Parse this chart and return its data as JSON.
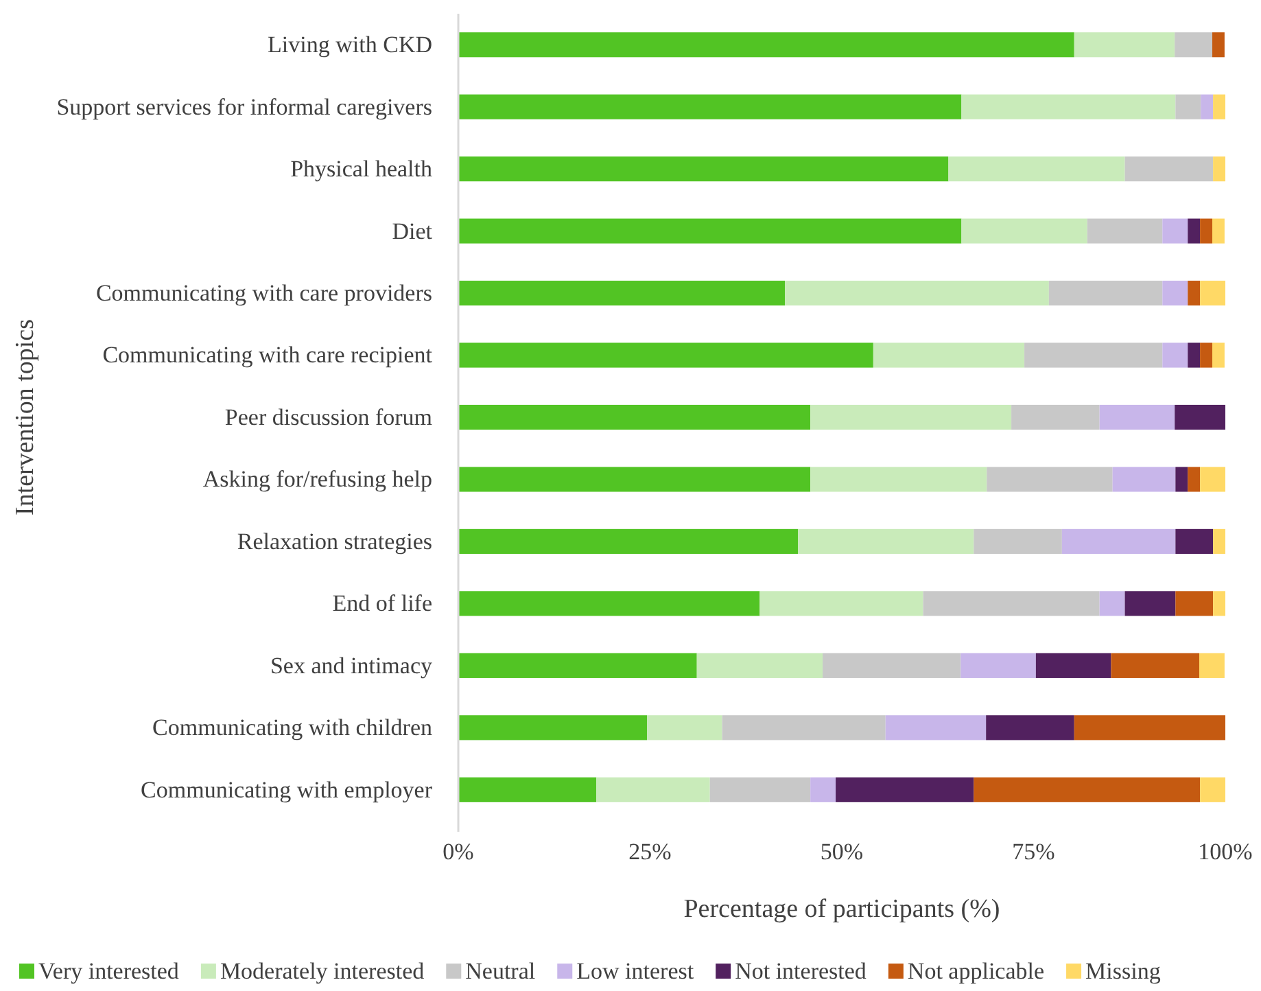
{
  "chart_data": {
    "type": "bar",
    "orientation": "horizontal",
    "stacked": true,
    "xlabel": "Percentage of participants (%)",
    "ylabel": "Intervention topics",
    "categories": [
      "Living with CKD",
      "Support services for informal caregivers",
      "Physical health",
      "Diet",
      "Communicating with care providers",
      "Communicating with care recipient",
      "Peer discussion forum",
      "Asking for/refusing help",
      "Relaxation strategies",
      "End of life",
      "Sex and intimacy",
      "Communicating with children",
      "Communicating with employer"
    ],
    "series": [
      {
        "name": "Very interested",
        "color": "#52c424",
        "values": [
          80.3,
          65.6,
          63.9,
          65.6,
          42.6,
          54.1,
          45.9,
          45.9,
          44.3,
          39.3,
          31.1,
          24.6,
          18.0
        ]
      },
      {
        "name": "Moderately interested",
        "color": "#c9ebba",
        "values": [
          13.1,
          27.9,
          23.0,
          16.4,
          34.4,
          19.7,
          26.2,
          23.0,
          22.9,
          21.3,
          16.4,
          9.8,
          14.8
        ]
      },
      {
        "name": "Neutral",
        "color": "#c8c8c8",
        "values": [
          4.9,
          3.3,
          11.5,
          9.8,
          14.8,
          18.0,
          11.5,
          16.4,
          11.5,
          23.0,
          18.0,
          21.3,
          13.1
        ]
      },
      {
        "name": "Low interest",
        "color": "#c8b6ea",
        "values": [
          0,
          1.6,
          0,
          3.3,
          3.3,
          3.3,
          9.8,
          8.2,
          14.8,
          3.3,
          9.8,
          13.1,
          3.3
        ]
      },
      {
        "name": "Not interested",
        "color": "#52215f",
        "values": [
          0,
          0,
          0,
          1.6,
          0,
          1.6,
          6.6,
          1.6,
          4.9,
          6.6,
          9.8,
          11.5,
          18.0
        ]
      },
      {
        "name": "Not applicable",
        "color": "#c55a11",
        "values": [
          1.6,
          0,
          0,
          1.6,
          1.6,
          1.6,
          0,
          1.6,
          0,
          4.9,
          11.5,
          19.7,
          29.5
        ]
      },
      {
        "name": "Missing",
        "color": "#ffd966",
        "values": [
          0,
          1.6,
          1.6,
          1.6,
          3.3,
          1.6,
          0,
          3.3,
          1.6,
          1.6,
          3.3,
          0,
          3.3
        ]
      }
    ],
    "xlim": [
      0,
      100
    ],
    "xticks": [
      {
        "value": 0,
        "label": "0%"
      },
      {
        "value": 25,
        "label": "25%"
      },
      {
        "value": 50,
        "label": "50%"
      },
      {
        "value": 75,
        "label": "75%"
      },
      {
        "value": 100,
        "label": "100%"
      }
    ],
    "grid": false,
    "legend": "bottom"
  }
}
